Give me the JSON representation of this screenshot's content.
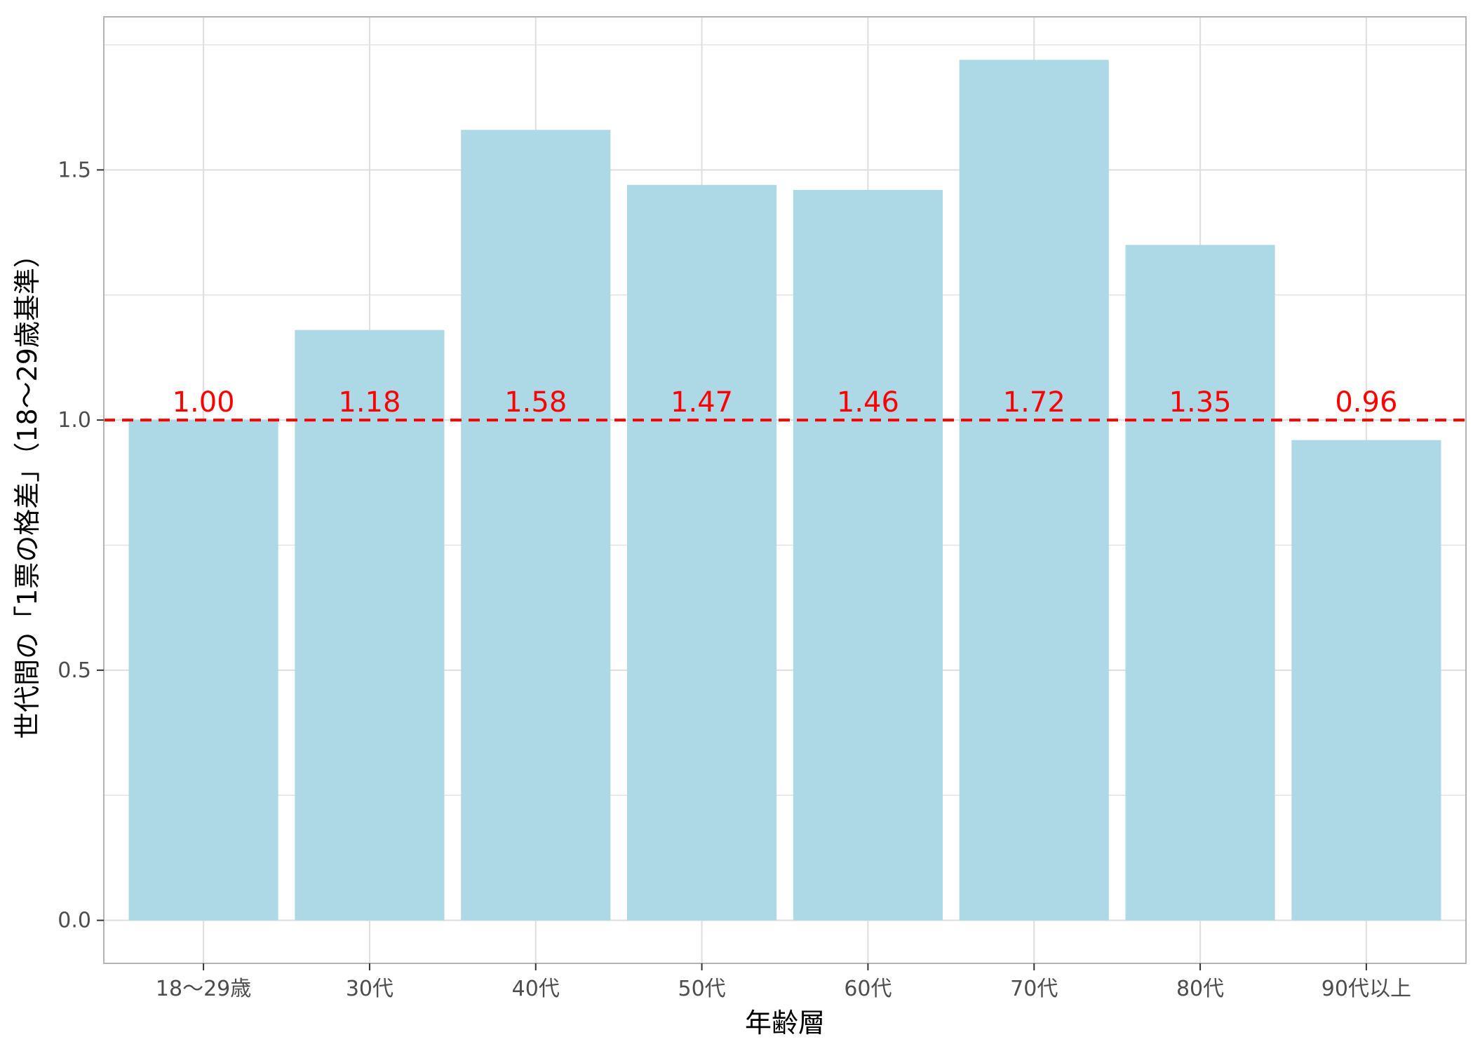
{
  "chart_data": {
    "type": "bar",
    "title": "",
    "xlabel": "年齢層",
    "ylabel": "世代間の「1票の格差」（18〜29歳基準）",
    "categories": [
      "18〜29歳",
      "30代",
      "40代",
      "50代",
      "60代",
      "70代",
      "80代",
      "90代以上"
    ],
    "values": [
      1.0,
      1.18,
      1.58,
      1.47,
      1.46,
      1.72,
      1.35,
      0.96
    ],
    "data_labels": [
      "1.00",
      "1.18",
      "1.58",
      "1.47",
      "1.46",
      "1.72",
      "1.35",
      "0.96"
    ],
    "y_ticks": [
      0.0,
      0.5,
      1.0,
      1.5
    ],
    "y_tick_labels": [
      "0.0",
      "0.5",
      "1.0",
      "1.5"
    ],
    "ylim": [
      -0.086,
      1.806
    ],
    "reference_line": {
      "y": 1.0,
      "style": "dashed",
      "color": "#ff0000"
    },
    "grid": true,
    "legend": "none",
    "colors": {
      "bar": "#add8e6",
      "label": "#ff0000",
      "grid": "#dedede",
      "panel_border": "#b3b3b3",
      "tick_text": "#4d4d4d"
    }
  }
}
